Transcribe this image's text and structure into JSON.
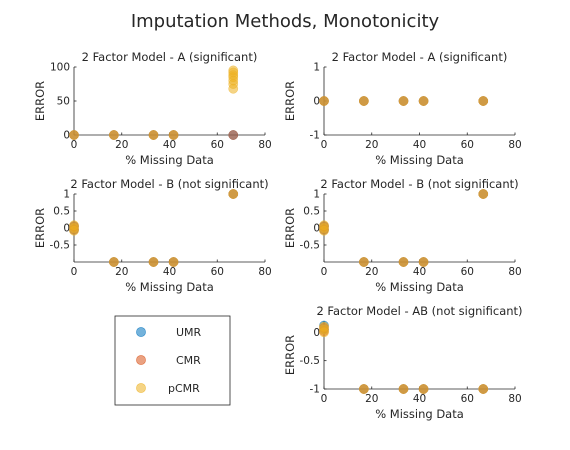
{
  "figure_title": "Imputation Methods, Monotonicity",
  "colors": {
    "UMR": "#0072BD",
    "CMR": "#D95319",
    "pCMR": "#EDB120",
    "axis": "#262626"
  },
  "legend": {
    "entries": [
      "UMR",
      "CMR",
      "pCMR"
    ]
  },
  "chart_data": [
    {
      "type": "scatter",
      "title": "2 Factor Model - A (significant)",
      "xlabel": "% Missing Data",
      "ylabel": "ERROR",
      "xlim": [
        0,
        80
      ],
      "ylim": [
        0,
        100
      ],
      "xticks": [
        0,
        20,
        40,
        60,
        80
      ],
      "yticks": [
        0,
        50,
        100
      ],
      "series": [
        {
          "name": "UMR",
          "points": [
            [
              0,
              0
            ],
            [
              16.7,
              0
            ],
            [
              33.3,
              0
            ],
            [
              41.7,
              0
            ],
            [
              66.7,
              0
            ]
          ]
        },
        {
          "name": "CMR",
          "points": [
            [
              0,
              0
            ],
            [
              16.7,
              0
            ],
            [
              33.3,
              0
            ],
            [
              41.7,
              0
            ],
            [
              66.7,
              0
            ]
          ]
        },
        {
          "name": "pCMR",
          "points": [
            [
              0,
              0
            ],
            [
              16.7,
              0
            ],
            [
              33.3,
              0
            ],
            [
              41.7,
              0
            ],
            [
              66.7,
              68
            ],
            [
              66.7,
              75
            ],
            [
              66.7,
              80
            ],
            [
              66.7,
              85
            ],
            [
              66.7,
              88
            ],
            [
              66.7,
              92
            ],
            [
              66.7,
              95
            ]
          ]
        }
      ]
    },
    {
      "type": "scatter",
      "title": "2 Factor Model - A (significant)",
      "xlabel": "% Missing Data",
      "ylabel": "ERROR",
      "xlim": [
        0,
        80
      ],
      "ylim": [
        -1,
        1
      ],
      "xticks": [
        0,
        20,
        40,
        60,
        80
      ],
      "yticks": [
        -1,
        0,
        1
      ],
      "series": [
        {
          "name": "UMR",
          "points": [
            [
              0,
              0
            ],
            [
              16.7,
              0
            ],
            [
              33.3,
              0
            ],
            [
              41.7,
              0
            ],
            [
              66.7,
              0
            ]
          ]
        },
        {
          "name": "CMR",
          "points": [
            [
              0,
              0
            ],
            [
              16.7,
              0
            ],
            [
              33.3,
              0
            ],
            [
              41.7,
              0
            ],
            [
              66.7,
              0
            ]
          ]
        },
        {
          "name": "pCMR",
          "points": [
            [
              0,
              0
            ],
            [
              16.7,
              0
            ],
            [
              33.3,
              0
            ],
            [
              41.7,
              0
            ],
            [
              66.7,
              0
            ]
          ]
        }
      ]
    },
    {
      "type": "scatter",
      "title": "2 Factor Model - B (not significant)",
      "xlabel": "% Missing Data",
      "ylabel": "ERROR",
      "xlim": [
        0,
        80
      ],
      "ylim": [
        -1,
        1
      ],
      "xticks": [
        0,
        20,
        40,
        60,
        80
      ],
      "yticks": [
        -0.5,
        0,
        0.5,
        1
      ],
      "ytick_labels": [
        "-0.5",
        "0",
        "0.5",
        "1"
      ],
      "series": [
        {
          "name": "UMR",
          "points": [
            [
              0,
              0.05
            ],
            [
              0,
              -0.05
            ],
            [
              16.7,
              -1
            ],
            [
              33.3,
              -1
            ],
            [
              41.7,
              -1
            ],
            [
              66.7,
              1
            ]
          ]
        },
        {
          "name": "CMR",
          "points": [
            [
              0,
              0.05
            ],
            [
              0,
              -0.05
            ],
            [
              16.7,
              -1
            ],
            [
              33.3,
              -1
            ],
            [
              41.7,
              -1
            ],
            [
              66.7,
              1
            ]
          ]
        },
        {
          "name": "pCMR",
          "points": [
            [
              0,
              0.08
            ],
            [
              0,
              0
            ],
            [
              0,
              -0.08
            ],
            [
              16.7,
              -1
            ],
            [
              33.3,
              -1
            ],
            [
              41.7,
              -1
            ],
            [
              66.7,
              1
            ]
          ]
        }
      ]
    },
    {
      "type": "scatter",
      "title": "2 Factor Model - B (not significant)",
      "xlabel": "% Missing Data",
      "ylabel": "ERROR",
      "xlim": [
        0,
        80
      ],
      "ylim": [
        -1,
        1
      ],
      "xticks": [
        0,
        20,
        40,
        60,
        80
      ],
      "yticks": [
        -0.5,
        0,
        0.5,
        1
      ],
      "ytick_labels": [
        "-0.5",
        "0",
        "0.5",
        "1"
      ],
      "series": [
        {
          "name": "UMR",
          "points": [
            [
              0,
              0.05
            ],
            [
              0,
              -0.05
            ],
            [
              16.7,
              -1
            ],
            [
              33.3,
              -1
            ],
            [
              41.7,
              -1
            ],
            [
              66.7,
              1
            ]
          ]
        },
        {
          "name": "CMR",
          "points": [
            [
              0,
              0.05
            ],
            [
              0,
              -0.05
            ],
            [
              16.7,
              -1
            ],
            [
              33.3,
              -1
            ],
            [
              41.7,
              -1
            ],
            [
              66.7,
              1
            ]
          ]
        },
        {
          "name": "pCMR",
          "points": [
            [
              0,
              0.08
            ],
            [
              0,
              0
            ],
            [
              0,
              -0.08
            ],
            [
              16.7,
              -1
            ],
            [
              33.3,
              -1
            ],
            [
              41.7,
              -1
            ],
            [
              66.7,
              1
            ]
          ]
        }
      ]
    },
    {
      "type": "scatter",
      "title": "2 Factor Model - AB (not significant)",
      "xlabel": "% Missing Data",
      "ylabel": "ERROR",
      "xlim": [
        0,
        80
      ],
      "ylim": [
        -1,
        0.2
      ],
      "xticks": [
        0,
        20,
        40,
        60,
        80
      ],
      "yticks": [
        -1,
        -0.5,
        0
      ],
      "ytick_labels": [
        "-1",
        "-0.5",
        "0"
      ],
      "series": [
        {
          "name": "UMR",
          "points": [
            [
              0,
              0.12
            ],
            [
              0,
              0.05
            ],
            [
              16.7,
              -1
            ],
            [
              33.3,
              -1
            ],
            [
              41.7,
              -1
            ],
            [
              66.7,
              -1
            ]
          ]
        },
        {
          "name": "CMR",
          "points": [
            [
              0,
              0.08
            ],
            [
              0,
              0.02
            ],
            [
              16.7,
              -1
            ],
            [
              33.3,
              -1
            ],
            [
              41.7,
              -1
            ],
            [
              66.7,
              -1
            ]
          ]
        },
        {
          "name": "pCMR",
          "points": [
            [
              0,
              0.1
            ],
            [
              0,
              0.05
            ],
            [
              0,
              0
            ],
            [
              16.7,
              -1
            ],
            [
              33.3,
              -1
            ],
            [
              41.7,
              -1
            ],
            [
              66.7,
              -1
            ]
          ]
        }
      ]
    }
  ]
}
